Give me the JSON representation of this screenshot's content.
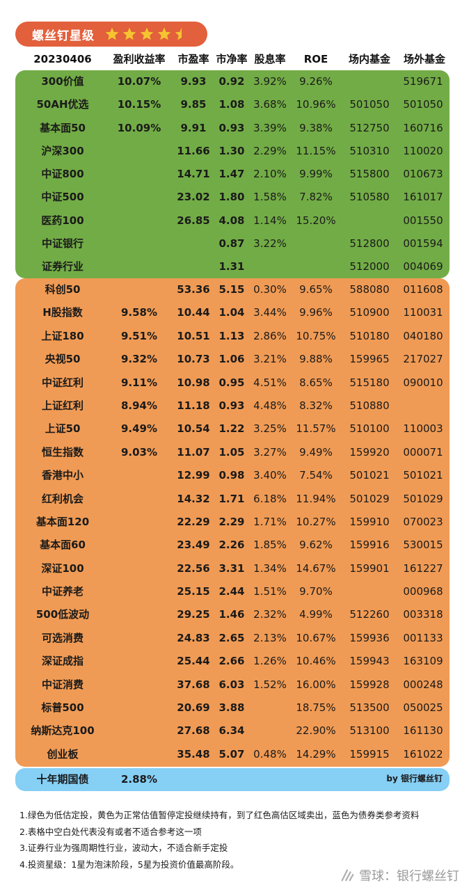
{
  "badge": {
    "title": "螺丝钉星级",
    "rating": 4.5,
    "max": 5,
    "star_color": "#f6c430"
  },
  "header": {
    "date": "20230406",
    "col_yield": "盈利收益率",
    "col_pe": "市盈率",
    "col_pb": "市净率",
    "col_div": "股息率",
    "col_roe": "ROE",
    "col_onmarket": "场内基金",
    "col_offmarket": "场外基金"
  },
  "colors": {
    "green": "#72ac46",
    "orange": "#f09b55",
    "blue": "#86cff5",
    "badge": "#e2603c"
  },
  "green_rows": [
    {
      "name": "300价值",
      "yield": "10.07%",
      "pe": "9.93",
      "pb": "0.92",
      "div": "3.92%",
      "roe": "9.26%",
      "in": "",
      "out": "519671"
    },
    {
      "name": "50AH优选",
      "yield": "10.15%",
      "pe": "9.85",
      "pb": "1.08",
      "div": "3.68%",
      "roe": "10.96%",
      "in": "501050",
      "out": "501050"
    },
    {
      "name": "基本面50",
      "yield": "10.09%",
      "pe": "9.91",
      "pb": "0.93",
      "div": "3.39%",
      "roe": "9.38%",
      "in": "512750",
      "out": "160716"
    },
    {
      "name": "沪深300",
      "yield": "",
      "pe": "11.66",
      "pb": "1.30",
      "div": "2.29%",
      "roe": "11.15%",
      "in": "510310",
      "out": "110020"
    },
    {
      "name": "中证800",
      "yield": "",
      "pe": "14.71",
      "pb": "1.47",
      "div": "2.10%",
      "roe": "9.99%",
      "in": "515800",
      "out": "010673"
    },
    {
      "name": "中证500",
      "yield": "",
      "pe": "23.02",
      "pb": "1.80",
      "div": "1.58%",
      "roe": "7.82%",
      "in": "510580",
      "out": "161017"
    },
    {
      "name": "医药100",
      "yield": "",
      "pe": "26.85",
      "pb": "4.08",
      "div": "1.14%",
      "roe": "15.20%",
      "in": "",
      "out": "001550"
    },
    {
      "name": "中证银行",
      "yield": "",
      "pe": "",
      "pb": "0.87",
      "div": "3.22%",
      "roe": "",
      "in": "512800",
      "out": "001594"
    },
    {
      "name": "证券行业",
      "yield": "",
      "pe": "",
      "pb": "1.31",
      "div": "",
      "roe": "",
      "in": "512000",
      "out": "004069"
    }
  ],
  "orange_rows": [
    {
      "name": "科创50",
      "yield": "",
      "pe": "53.36",
      "pb": "5.15",
      "div": "0.30%",
      "roe": "9.65%",
      "in": "588080",
      "out": "011608"
    },
    {
      "name": "H股指数",
      "yield": "9.58%",
      "pe": "10.44",
      "pb": "1.04",
      "div": "3.44%",
      "roe": "9.96%",
      "in": "510900",
      "out": "110031"
    },
    {
      "name": "上证180",
      "yield": "9.51%",
      "pe": "10.51",
      "pb": "1.13",
      "div": "2.86%",
      "roe": "10.75%",
      "in": "510180",
      "out": "040180"
    },
    {
      "name": "央视50",
      "yield": "9.32%",
      "pe": "10.73",
      "pb": "1.06",
      "div": "3.21%",
      "roe": "9.88%",
      "in": "159965",
      "out": "217027"
    },
    {
      "name": "中证红利",
      "yield": "9.11%",
      "pe": "10.98",
      "pb": "0.95",
      "div": "4.51%",
      "roe": "8.65%",
      "in": "515180",
      "out": "090010"
    },
    {
      "name": "上证红利",
      "yield": "8.94%",
      "pe": "11.18",
      "pb": "0.93",
      "div": "4.48%",
      "roe": "8.32%",
      "in": "510880",
      "out": ""
    },
    {
      "name": "上证50",
      "yield": "9.49%",
      "pe": "10.54",
      "pb": "1.22",
      "div": "3.25%",
      "roe": "11.57%",
      "in": "510100",
      "out": "110003"
    },
    {
      "name": "恒生指数",
      "yield": "9.03%",
      "pe": "11.07",
      "pb": "1.05",
      "div": "3.27%",
      "roe": "9.49%",
      "in": "159920",
      "out": "000071"
    },
    {
      "name": "香港中小",
      "yield": "",
      "pe": "12.99",
      "pb": "0.98",
      "div": "3.40%",
      "roe": "7.54%",
      "in": "501021",
      "out": "501021"
    },
    {
      "name": "红利机会",
      "yield": "",
      "pe": "14.32",
      "pb": "1.71",
      "div": "6.18%",
      "roe": "11.94%",
      "in": "501029",
      "out": "501029"
    },
    {
      "name": "基本面120",
      "yield": "",
      "pe": "22.29",
      "pb": "2.29",
      "div": "1.71%",
      "roe": "10.27%",
      "in": "159910",
      "out": "070023"
    },
    {
      "name": "基本面60",
      "yield": "",
      "pe": "23.49",
      "pb": "2.26",
      "div": "1.85%",
      "roe": "9.62%",
      "in": "159916",
      "out": "530015"
    },
    {
      "name": "深证100",
      "yield": "",
      "pe": "22.56",
      "pb": "3.31",
      "div": "1.34%",
      "roe": "14.67%",
      "in": "159901",
      "out": "161227"
    },
    {
      "name": "中证养老",
      "yield": "",
      "pe": "25.15",
      "pb": "2.44",
      "div": "1.51%",
      "roe": "9.70%",
      "in": "",
      "out": "000968"
    },
    {
      "name": "500低波动",
      "yield": "",
      "pe": "29.25",
      "pb": "1.46",
      "div": "2.32%",
      "roe": "4.99%",
      "in": "512260",
      "out": "003318"
    },
    {
      "name": "可选消费",
      "yield": "",
      "pe": "24.83",
      "pb": "2.65",
      "div": "2.13%",
      "roe": "10.67%",
      "in": "159936",
      "out": "001133"
    },
    {
      "name": "深证成指",
      "yield": "",
      "pe": "25.44",
      "pb": "2.66",
      "div": "1.26%",
      "roe": "10.46%",
      "in": "159943",
      "out": "163109"
    },
    {
      "name": "中证消费",
      "yield": "",
      "pe": "37.68",
      "pb": "6.03",
      "div": "1.52%",
      "roe": "16.00%",
      "in": "159928",
      "out": "000248"
    },
    {
      "name": "标普500",
      "yield": "",
      "pe": "20.69",
      "pb": "3.88",
      "div": "",
      "roe": "18.75%",
      "in": "513500",
      "out": "050025"
    },
    {
      "name": "纳斯达克100",
      "yield": "",
      "pe": "27.68",
      "pb": "6.34",
      "div": "",
      "roe": "22.90%",
      "in": "513100",
      "out": "161130"
    },
    {
      "name": "创业板",
      "yield": "",
      "pe": "35.48",
      "pb": "5.07",
      "div": "0.48%",
      "roe": "14.29%",
      "in": "159915",
      "out": "161022"
    }
  ],
  "bond": {
    "name": "十年期国债",
    "yield": "2.88%",
    "credit": "by 银行螺丝钉"
  },
  "notes": [
    "1.绿色为低估定投，黄色为正常估值暂停定投继续持有，到了红色高估区域卖出，蓝色为债券类参考资料",
    "2.表格中空白处代表没有或者不适合参考这一项",
    "3.证券行业为强周期性行业，波动大，不适合新手定投",
    "4.投资星级：1星为泡沫阶段，5星为投资价值最高阶段。"
  ],
  "watermark": {
    "text": "雪球：银行螺丝钉",
    "icon": "snowball-icon"
  }
}
